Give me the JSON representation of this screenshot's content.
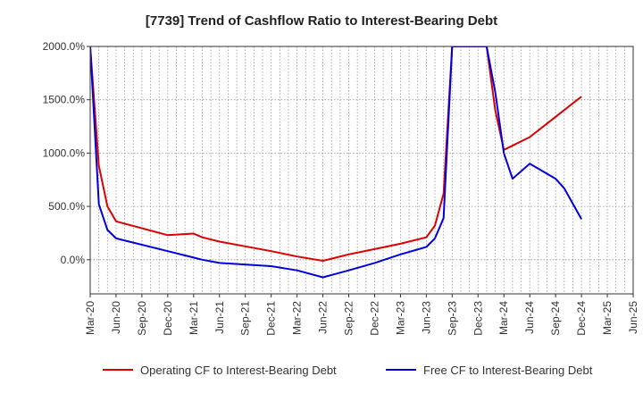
{
  "chart_data": {
    "type": "line",
    "title": "[7739]  Trend of Cashflow Ratio to Interest-Bearing Debt",
    "xlabel": "",
    "ylabel": "",
    "x_tick_labels": [
      "Mar-20",
      "Jun-20",
      "Sep-20",
      "Dec-20",
      "Mar-21",
      "Jun-21",
      "Sep-21",
      "Dec-21",
      "Mar-22",
      "Jun-22",
      "Sep-22",
      "Dec-22",
      "Mar-23",
      "Jun-23",
      "Sep-23",
      "Dec-23",
      "Mar-24",
      "Jun-24",
      "Sep-24",
      "Dec-24",
      "Mar-25",
      "Jun-25"
    ],
    "y_ticks": [
      0,
      500,
      1000,
      1500,
      2000
    ],
    "y_tick_labels": [
      "0.0%",
      "500.0%",
      "1000.0%",
      "1500.0%",
      "2000.0%"
    ],
    "ylim": [
      -320,
      2000
    ],
    "grid": true,
    "legend_position": "bottom",
    "colors": {
      "operating": "#dd0000",
      "free": "#0000dd",
      "grid": "#999999",
      "axis": "#333333"
    },
    "series": [
      {
        "name": "Operating CF to Interest-Bearing Debt",
        "color": "#dd0000",
        "points": [
          [
            "Mar-20",
            2000
          ],
          [
            "Apr-20",
            880
          ],
          [
            "May-20",
            500
          ],
          [
            "Jun-20",
            360
          ],
          [
            "Dec-20",
            230
          ],
          [
            "Mar-21",
            245
          ],
          [
            "Apr-21",
            210
          ],
          [
            "Jun-21",
            170
          ],
          [
            "Dec-21",
            80
          ],
          [
            "Mar-22",
            30
          ],
          [
            "Jun-22",
            -10
          ],
          [
            "Sep-22",
            50
          ],
          [
            "Dec-22",
            100
          ],
          [
            "Mar-23",
            150
          ],
          [
            "Jun-23",
            210
          ],
          [
            "Jul-23",
            320
          ],
          [
            "Aug-23",
            620
          ],
          [
            "Sep-23",
            2000
          ],
          [
            "Jan-24",
            2000
          ],
          [
            "Feb-24",
            1400
          ],
          [
            "Mar-24",
            1030
          ],
          [
            "Jun-24",
            1150
          ],
          [
            "Sep-24",
            1340
          ],
          [
            "Dec-24",
            1530
          ]
        ]
      },
      {
        "name": "Free CF to Interest-Bearing Debt",
        "color": "#0000dd",
        "points": [
          [
            "Mar-20",
            2000
          ],
          [
            "Apr-20",
            520
          ],
          [
            "May-20",
            280
          ],
          [
            "Jun-20",
            200
          ],
          [
            "Dec-20",
            80
          ],
          [
            "Mar-21",
            20
          ],
          [
            "Apr-21",
            0
          ],
          [
            "Jun-21",
            -30
          ],
          [
            "Dec-21",
            -60
          ],
          [
            "Mar-22",
            -100
          ],
          [
            "Jun-22",
            -165
          ],
          [
            "Sep-22",
            -100
          ],
          [
            "Dec-22",
            -30
          ],
          [
            "Mar-23",
            50
          ],
          [
            "Jun-23",
            120
          ],
          [
            "Jul-23",
            200
          ],
          [
            "Aug-23",
            390
          ],
          [
            "Sep-23",
            2000
          ],
          [
            "Jan-24",
            2000
          ],
          [
            "Feb-24",
            1570
          ],
          [
            "Mar-24",
            1000
          ],
          [
            "Apr-24",
            760
          ],
          [
            "Jun-24",
            900
          ],
          [
            "Sep-24",
            760
          ],
          [
            "Oct-24",
            670
          ],
          [
            "Dec-24",
            380
          ]
        ]
      }
    ]
  }
}
